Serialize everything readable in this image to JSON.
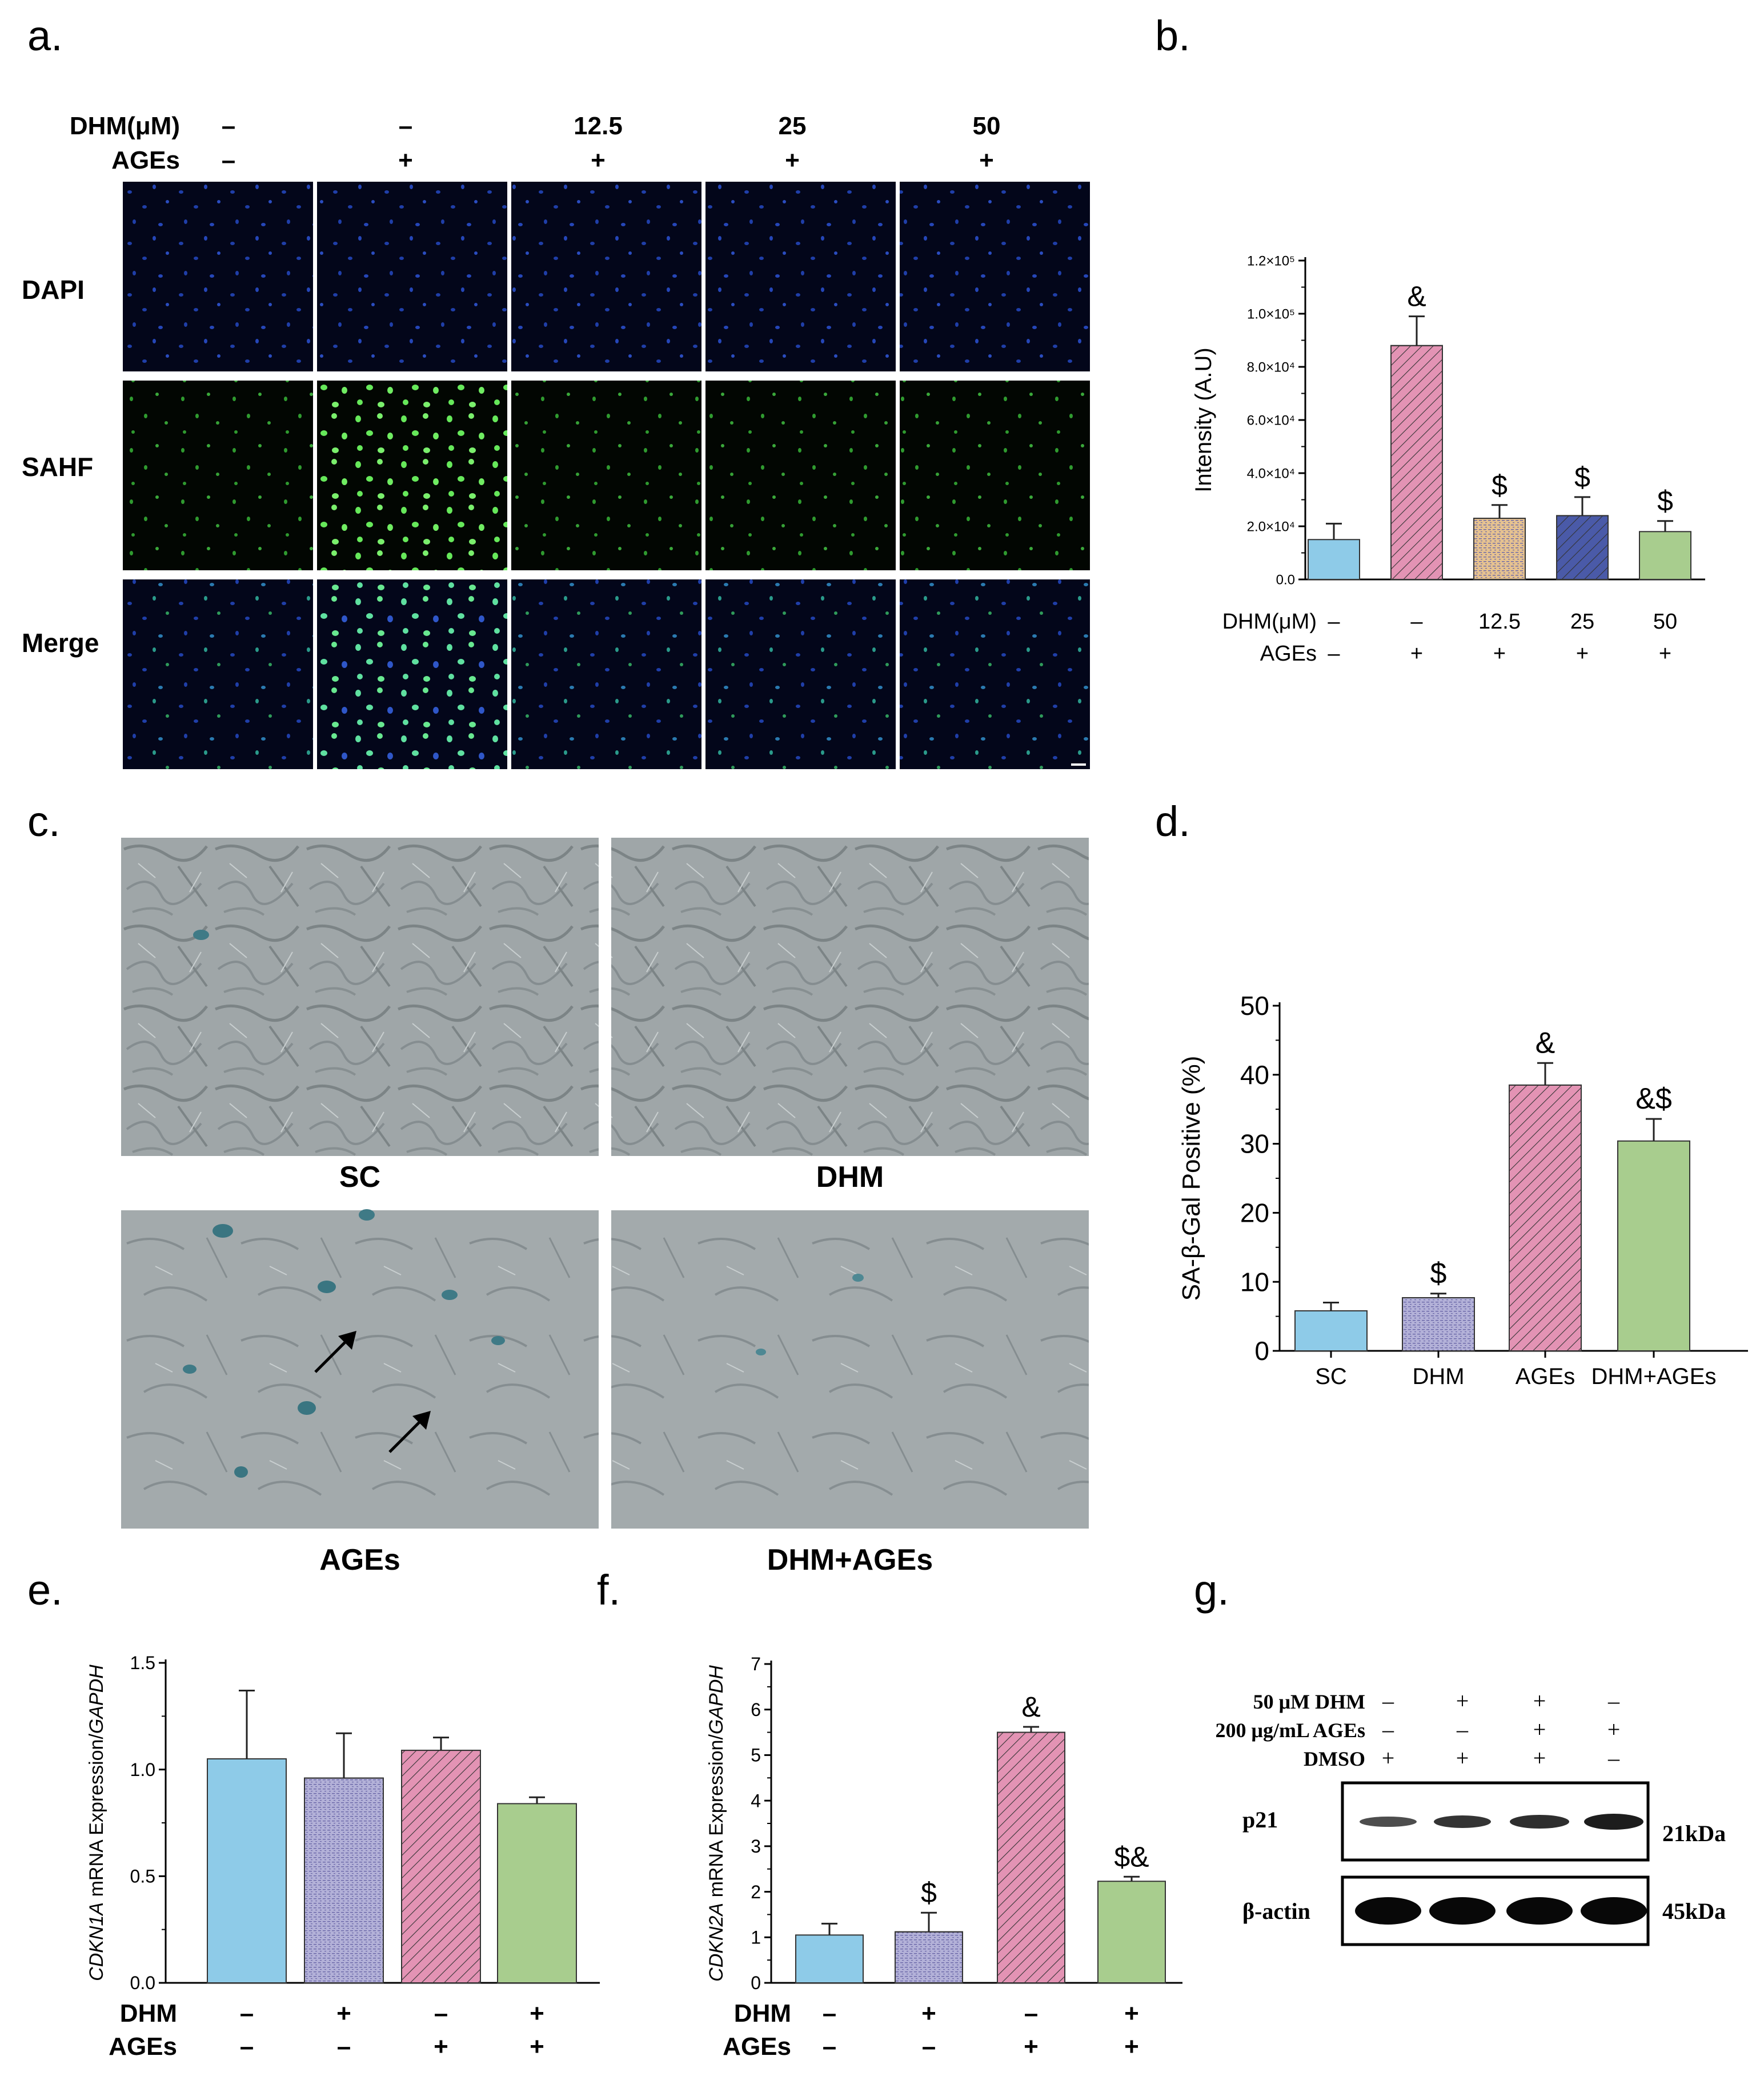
{
  "panels": {
    "a": "a.",
    "b": "b.",
    "c": "c.",
    "d": "d.",
    "e": "e.",
    "f": "f.",
    "g": "g."
  },
  "colors": {
    "blue": "#8ecbe8",
    "lavender": "#b3b1d8",
    "pink": "#e393b4",
    "tan": "#e6c290",
    "navy": "#4a5aa8",
    "green": "#a8cd8e"
  },
  "panel_a": {
    "row1_label": "DHM(μM)",
    "row2_label": "AGEs",
    "dhm": [
      "–",
      "–",
      "12.5",
      "25",
      "50"
    ],
    "ages": [
      "–",
      "+",
      "+",
      "+",
      "+"
    ],
    "rows": [
      "DAPI",
      "SAHF",
      "Merge"
    ]
  },
  "panel_c": {
    "labels": [
      "SC",
      "DHM",
      "AGEs",
      "DHM+AGEs"
    ]
  },
  "panel_g": {
    "rows": [
      "50 μM DHM",
      "200 μg/mL AGEs",
      "DMSO"
    ],
    "signs": [
      [
        "–",
        "+",
        "+",
        "–"
      ],
      [
        "–",
        "–",
        "+",
        "+"
      ],
      [
        "+",
        "+",
        "+",
        "–"
      ]
    ],
    "bands": [
      "p21",
      "β-actin"
    ],
    "sizes": [
      "21kDa",
      "45kDa"
    ]
  },
  "chart_data": [
    {
      "panel": "b",
      "type": "bar",
      "ylabel": "Intensity (A.U)",
      "ylim": [
        0,
        120000
      ],
      "yticks": [
        "0.0",
        "2.0×10⁴",
        "4.0×10⁴",
        "6.0×10⁴",
        "8.0×10⁴",
        "1.0×10⁵",
        "1.2×10⁵"
      ],
      "rows": [
        {
          "label": "DHM(μM)",
          "values": [
            "–",
            "–",
            "12.5",
            "25",
            "50"
          ]
        },
        {
          "label": "AGEs",
          "values": [
            "–",
            "+",
            "+",
            "+",
            "+"
          ]
        }
      ],
      "values": [
        15000,
        88000,
        23000,
        24000,
        18000
      ],
      "errors": [
        6000,
        11000,
        5000,
        7000,
        4000
      ],
      "annotations": [
        "",
        "&",
        "$",
        "$",
        "$"
      ]
    },
    {
      "panel": "d",
      "type": "bar",
      "ylabel": "SA-β-Gal Positive (%)",
      "ylim": [
        0,
        50
      ],
      "yticks": [
        "0",
        "10",
        "20",
        "30",
        "40",
        "50"
      ],
      "categories": [
        "SC",
        "DHM",
        "AGEs",
        "DHM+AGEs"
      ],
      "values": [
        5.8,
        7.7,
        38.5,
        30.4
      ],
      "errors": [
        1.2,
        0.6,
        3.2,
        3.2
      ],
      "annotations": [
        "",
        "$",
        "&",
        "&$"
      ]
    },
    {
      "panel": "e",
      "type": "bar",
      "ylabel": "CDKN1A mRNA Expression/GAPDH",
      "ylim": [
        0,
        1.5
      ],
      "yticks": [
        "0.0",
        "0.5",
        "1.0",
        "1.5"
      ],
      "rows": [
        {
          "label": "DHM",
          "values": [
            "–",
            "+",
            "–",
            "+"
          ]
        },
        {
          "label": "AGEs",
          "values": [
            "–",
            "–",
            "+",
            "+"
          ]
        }
      ],
      "values": [
        1.05,
        0.96,
        1.09,
        0.84
      ],
      "errors": [
        0.32,
        0.21,
        0.06,
        0.03
      ],
      "annotations": [
        "",
        "",
        "",
        ""
      ]
    },
    {
      "panel": "f",
      "type": "bar",
      "ylabel": "CDKN2A mRNA Expression/GAPDH",
      "ylim": [
        0,
        7
      ],
      "yticks": [
        "0",
        "1",
        "2",
        "3",
        "4",
        "5",
        "6",
        "7"
      ],
      "rows": [
        {
          "label": "DHM",
          "values": [
            "–",
            "+",
            "–",
            "+"
          ]
        },
        {
          "label": "AGEs",
          "values": [
            "–",
            "–",
            "+",
            "+"
          ]
        }
      ],
      "values": [
        1.05,
        1.12,
        5.5,
        2.23
      ],
      "errors": [
        0.25,
        0.42,
        0.12,
        0.1
      ],
      "annotations": [
        "",
        "$",
        "&",
        "$&"
      ]
    }
  ]
}
